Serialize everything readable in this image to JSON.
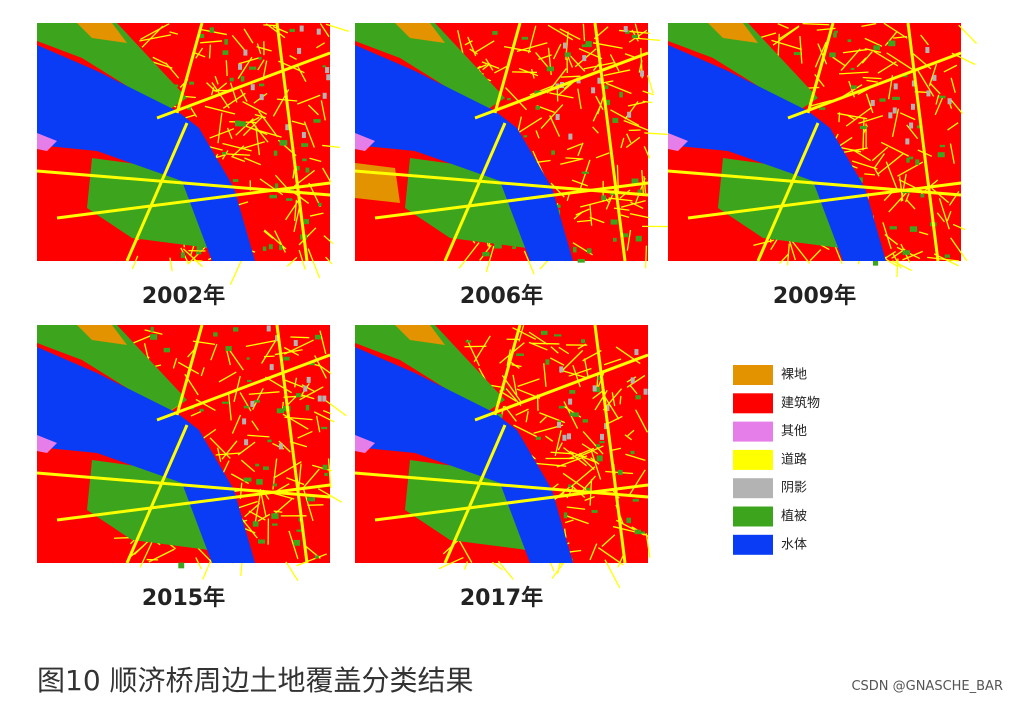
{
  "panels": [
    {
      "label": "2002年"
    },
    {
      "label": "2006年"
    },
    {
      "label": "2009年"
    },
    {
      "label": "2015年"
    },
    {
      "label": "2017年"
    }
  ],
  "legend": [
    {
      "label": "裸地",
      "color": "#e39200"
    },
    {
      "label": "建筑物",
      "color": "#ff0000"
    },
    {
      "label": "其他",
      "color": "#e57ee8"
    },
    {
      "label": "道路",
      "color": "#ffff00"
    },
    {
      "label": "阴影",
      "color": "#b3b3b3"
    },
    {
      "label": "植被",
      "color": "#3da51d"
    },
    {
      "label": "水体",
      "color": "#0b3cf5"
    }
  ],
  "caption": "图10  顺济桥周边土地覆盖分类结果",
  "watermark": "CSDN @GNASCHE_BAR"
}
